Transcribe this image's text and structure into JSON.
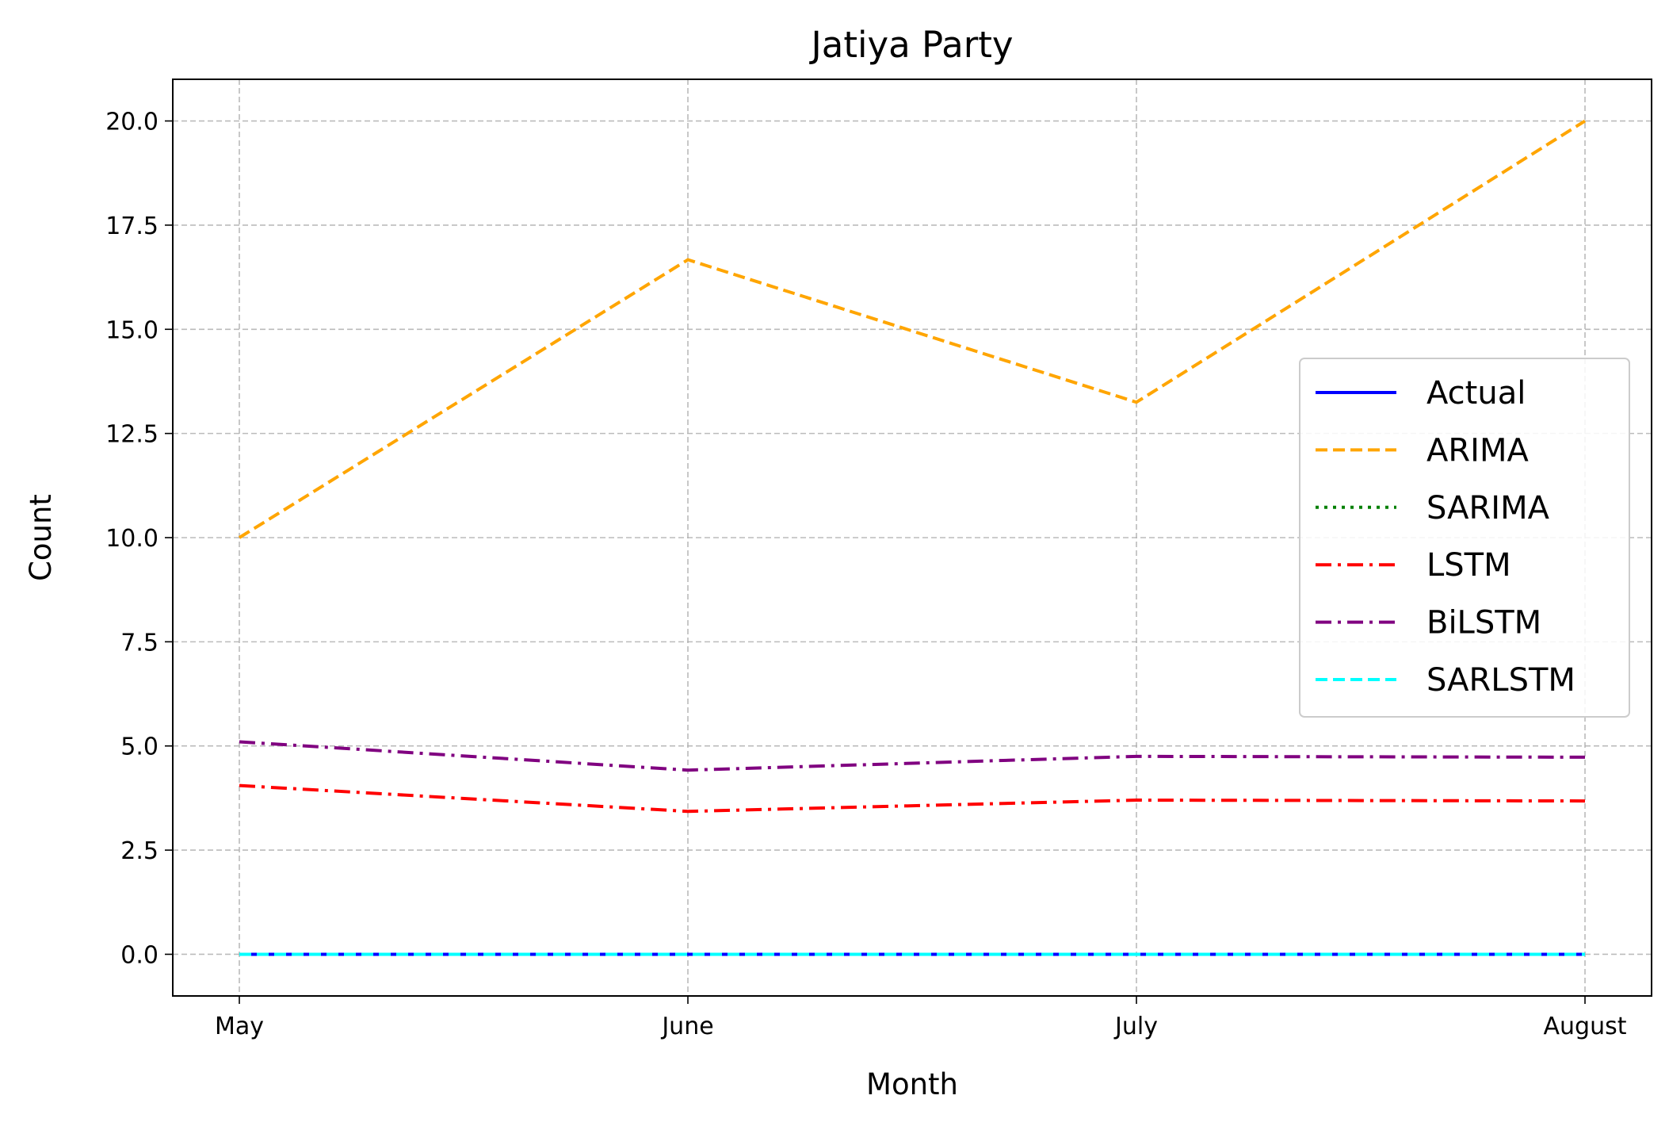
{
  "chart_data": {
    "type": "line",
    "title": "Jatiya Party",
    "xlabel": "Month",
    "ylabel": "Count",
    "categories": [
      "May",
      "June",
      "July",
      "August"
    ],
    "ylim": [
      -1.0,
      21.0
    ],
    "yticks": [
      0.0,
      2.5,
      5.0,
      7.5,
      10.0,
      12.5,
      15.0,
      17.5,
      20.0
    ],
    "ytick_labels": [
      "0.0",
      "2.5",
      "5.0",
      "7.5",
      "10.0",
      "12.5",
      "15.0",
      "17.5",
      "20.0"
    ],
    "grid": true,
    "legend_position": "center-right",
    "series": [
      {
        "name": "Actual",
        "values": [
          0,
          0,
          0,
          0
        ],
        "color": "#0000ff",
        "dash": "solid"
      },
      {
        "name": "ARIMA",
        "values": [
          10.0,
          16.67,
          13.25,
          20.0
        ],
        "color": "#ffa500",
        "dash": "dashed"
      },
      {
        "name": "SARIMA",
        "values": [
          0,
          0,
          0,
          0
        ],
        "color": "#008000",
        "dash": "dotted"
      },
      {
        "name": "LSTM",
        "values": [
          4.05,
          3.43,
          3.7,
          3.68
        ],
        "color": "#ff0000",
        "dash": "dashdot"
      },
      {
        "name": "BiLSTM",
        "values": [
          5.1,
          4.42,
          4.75,
          4.73
        ],
        "color": "#800080",
        "dash": "dashdot"
      },
      {
        "name": "SARLSTM",
        "values": [
          0,
          0,
          0,
          0
        ],
        "color": "#00ffff",
        "dash": "dashed"
      }
    ]
  }
}
